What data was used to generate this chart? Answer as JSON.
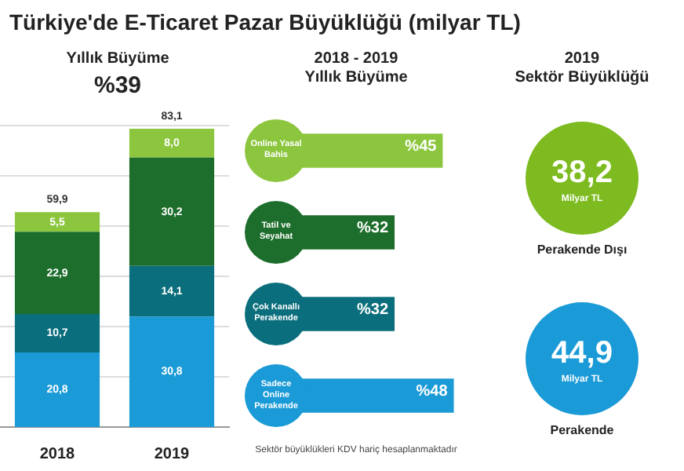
{
  "chart_data": [
    {
      "type": "bar",
      "title": "Türkiye'de E-Ticaret Pazar Büyüklüğü (milyar TL)",
      "subtitle": "Yıllık Büyüme",
      "annotations": [
        "%39"
      ],
      "categories": [
        "2018",
        "2019"
      ],
      "stacked": true,
      "series": [
        {
          "color": "#1a9ad6",
          "values": [
            20.8,
            30.8
          ],
          "value_labels": [
            "20,8",
            "30,8"
          ]
        },
        {
          "color": "#0b6e7c",
          "values": [
            10.7,
            14.1
          ],
          "value_labels": [
            "10,7",
            "14,1"
          ]
        },
        {
          "color": "#1d6e2c",
          "values": [
            22.9,
            30.2
          ],
          "value_labels": [
            "22,9",
            "30,2"
          ]
        },
        {
          "color": "#8cc63f",
          "values": [
            5.5,
            8.0
          ],
          "value_labels": [
            "5,5",
            "8,0"
          ]
        }
      ],
      "totals": [
        "59,9",
        "83,1"
      ],
      "ylim": [
        0,
        84
      ],
      "yticks": [
        {
          "value": 14,
          "label": null
        },
        {
          "value": 28,
          "label": null
        },
        {
          "value": 42,
          "label": null
        },
        {
          "value": 56,
          "label": null
        },
        {
          "value": 70,
          "label": null
        },
        {
          "value": 84,
          "label": null
        }
      ],
      "grid": "y",
      "tick_labels": "x",
      "legend": false
    },
    {
      "type": "bar",
      "orientation": "horizontal",
      "title": "2018 - 2019",
      "subtitle": "Yıllık Büyüme",
      "categories": [
        "Online Yasal Bahis",
        "Tatil ve Seyahat",
        "Çok Kanallı Perakende",
        "Sadece Online Perakende"
      ],
      "values": [
        45,
        32,
        32,
        48
      ],
      "value_labels": [
        "%45",
        "%32",
        "%32",
        "%48"
      ],
      "colors": [
        "#8cc63f",
        "#1d6e2c",
        "#0b6e7c",
        "#1a9ad6"
      ],
      "annotations": [
        "Sektör büyüklükleri KDV hariç hesaplanmaktadır"
      ],
      "legend": false
    },
    {
      "type": "other",
      "title": "2019",
      "subtitle": "Sektör Büyüklüğü",
      "categories": [
        "Perakende Dışı",
        "Perakende"
      ],
      "values": [
        38.2,
        44.9
      ],
      "value_labels": [
        "38,2",
        "44,9"
      ],
      "colors": [
        "#7dbb20",
        "#1a9ad6"
      ],
      "annotations": [
        "Milyar TL"
      ]
    }
  ]
}
